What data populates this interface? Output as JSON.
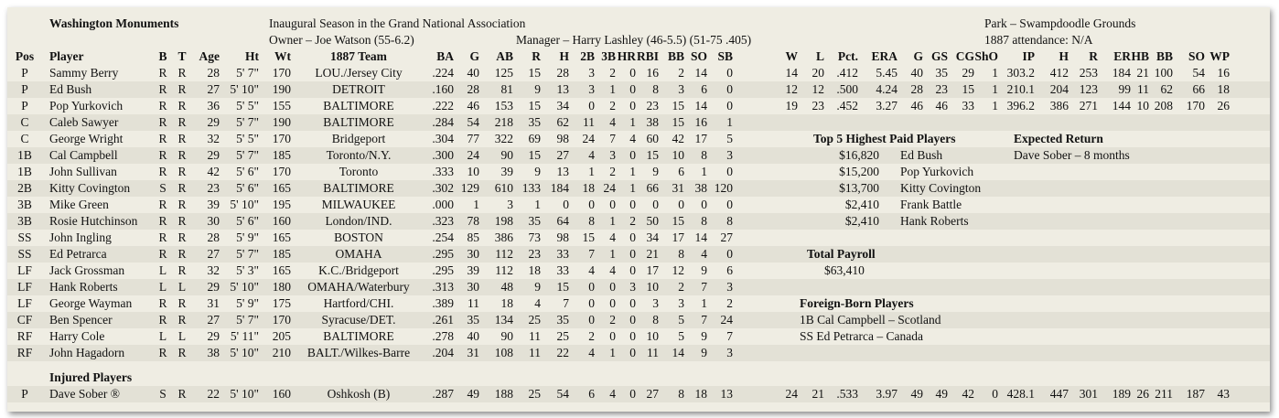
{
  "team": {
    "name": "Washington Monuments",
    "season": "Inaugural Season in the Grand National Association",
    "owner": "Owner – Joe Watson (55-6.2)",
    "manager": "Manager – Harry Lashley (46-5.5)  (51-75 .405)",
    "park": "Park – Swampdoodle Grounds",
    "attendance": "1887 attendance:  N/A"
  },
  "headers": [
    "Pos",
    "Player",
    "B",
    "T",
    "Age",
    "Ht",
    "Wt",
    "1887 Team",
    "BA",
    "G",
    "AB",
    "R",
    "H",
    "2B",
    "3B",
    "HR",
    "RBI",
    "BB",
    "SO",
    "SB",
    "W",
    "L",
    "Pct.",
    "ERA",
    "G",
    "GS",
    "CG",
    "ShO",
    "IP",
    "H",
    "R",
    "ER",
    "HB",
    "BB",
    "SO",
    "WP"
  ],
  "players": [
    {
      "pos": "P",
      "name": "Sammy Berry",
      "b": "R",
      "t": "R",
      "age": "28",
      "ht": "5' 7\"",
      "wt": "170",
      "team": "LOU./Jersey City",
      "bat": [
        ".224",
        "40",
        "125",
        "15",
        "28",
        "3",
        "2",
        "0",
        "16",
        "2",
        "14",
        "0"
      ],
      "pit": [
        "14",
        "20",
        ".412",
        "5.45",
        "40",
        "35",
        "29",
        "1",
        "303.2",
        "412",
        "253",
        "184",
        "21",
        "100",
        "54",
        "16"
      ]
    },
    {
      "pos": "P",
      "name": "Ed Bush",
      "b": "R",
      "t": "R",
      "age": "27",
      "ht": "5' 10\"",
      "wt": "190",
      "team": "DETROIT",
      "bat": [
        ".160",
        "28",
        "81",
        "9",
        "13",
        "3",
        "1",
        "0",
        "8",
        "3",
        "6",
        "0"
      ],
      "pit": [
        "12",
        "12",
        ".500",
        "4.24",
        "28",
        "23",
        "15",
        "1",
        "210.1",
        "204",
        "123",
        "99",
        "11",
        "62",
        "66",
        "18"
      ]
    },
    {
      "pos": "P",
      "name": "Pop Yurkovich",
      "b": "R",
      "t": "R",
      "age": "36",
      "ht": "5' 5\"",
      "wt": "155",
      "team": "BALTIMORE",
      "bat": [
        ".222",
        "46",
        "153",
        "15",
        "34",
        "0",
        "2",
        "0",
        "23",
        "15",
        "14",
        "0"
      ],
      "pit": [
        "19",
        "23",
        ".452",
        "3.27",
        "46",
        "46",
        "33",
        "1",
        "396.2",
        "386",
        "271",
        "144",
        "10",
        "208",
        "170",
        "26"
      ]
    },
    {
      "pos": "C",
      "name": "Caleb Sawyer",
      "b": "R",
      "t": "R",
      "age": "29",
      "ht": "5' 7\"",
      "wt": "190",
      "team": "BALTIMORE",
      "bat": [
        ".284",
        "54",
        "218",
        "35",
        "62",
        "11",
        "4",
        "1",
        "38",
        "15",
        "16",
        "1"
      ],
      "pit": []
    },
    {
      "pos": "C",
      "name": "George Wright",
      "b": "R",
      "t": "R",
      "age": "32",
      "ht": "5' 5\"",
      "wt": "170",
      "team": "Bridgeport",
      "bat": [
        ".304",
        "77",
        "322",
        "69",
        "98",
        "24",
        "7",
        "4",
        "60",
        "42",
        "17",
        "5"
      ],
      "pit": []
    },
    {
      "pos": "1B",
      "name": "Cal Campbell",
      "b": "R",
      "t": "R",
      "age": "29",
      "ht": "5' 7\"",
      "wt": "185",
      "team": "Toronto/N.Y.",
      "bat": [
        ".300",
        "24",
        "90",
        "15",
        "27",
        "4",
        "3",
        "0",
        "15",
        "10",
        "8",
        "3"
      ],
      "pit": []
    },
    {
      "pos": "1B",
      "name": "John Sullivan",
      "b": "R",
      "t": "R",
      "age": "42",
      "ht": "5' 6\"",
      "wt": "170",
      "team": "Toronto",
      "bat": [
        ".333",
        "10",
        "39",
        "9",
        "13",
        "1",
        "2",
        "1",
        "9",
        "6",
        "1",
        "0"
      ],
      "pit": []
    },
    {
      "pos": "2B",
      "name": "Kitty Covington",
      "b": "S",
      "t": "R",
      "age": "23",
      "ht": "5' 6\"",
      "wt": "165",
      "team": "BALTIMORE",
      "bat": [
        ".302",
        "129",
        "610",
        "133",
        "184",
        "18",
        "24",
        "1",
        "66",
        "31",
        "38",
        "120"
      ],
      "pit": []
    },
    {
      "pos": "3B",
      "name": "Mike Green",
      "b": "R",
      "t": "R",
      "age": "39",
      "ht": "5' 10\"",
      "wt": "195",
      "team": "MILWAUKEE",
      "bat": [
        ".000",
        "1",
        "3",
        "1",
        "0",
        "0",
        "0",
        "0",
        "0",
        "0",
        "0",
        "0"
      ],
      "pit": []
    },
    {
      "pos": "3B",
      "name": "Rosie Hutchinson",
      "b": "R",
      "t": "R",
      "age": "30",
      "ht": "5' 6\"",
      "wt": "160",
      "team": "London/IND.",
      "bat": [
        ".323",
        "78",
        "198",
        "35",
        "64",
        "8",
        "1",
        "2",
        "50",
        "15",
        "8",
        "8"
      ],
      "pit": []
    },
    {
      "pos": "SS",
      "name": "John Ingling",
      "b": "R",
      "t": "R",
      "age": "28",
      "ht": "5' 9\"",
      "wt": "165",
      "team": "BOSTON",
      "bat": [
        ".254",
        "85",
        "386",
        "73",
        "98",
        "15",
        "4",
        "0",
        "34",
        "17",
        "14",
        "27"
      ],
      "pit": []
    },
    {
      "pos": "SS",
      "name": "Ed Petrarca",
      "b": "R",
      "t": "R",
      "age": "27",
      "ht": "5' 7\"",
      "wt": "185",
      "team": "OMAHA",
      "bat": [
        ".295",
        "30",
        "112",
        "23",
        "33",
        "7",
        "1",
        "0",
        "21",
        "8",
        "4",
        "0"
      ],
      "pit": []
    },
    {
      "pos": "LF",
      "name": "Jack Grossman",
      "b": "L",
      "t": "R",
      "age": "32",
      "ht": "5' 3\"",
      "wt": "165",
      "team": "K.C./Bridgeport",
      "bat": [
        ".295",
        "39",
        "112",
        "18",
        "33",
        "4",
        "4",
        "0",
        "17",
        "12",
        "9",
        "6"
      ],
      "pit": []
    },
    {
      "pos": "LF",
      "name": "Hank Roberts",
      "b": "L",
      "t": "L",
      "age": "29",
      "ht": "5' 10\"",
      "wt": "180",
      "team": "OMAHA/Waterbury",
      "bat": [
        ".313",
        "30",
        "48",
        "9",
        "15",
        "0",
        "0",
        "3",
        "10",
        "2",
        "7",
        "3"
      ],
      "pit": []
    },
    {
      "pos": "LF",
      "name": "George Wayman",
      "b": "R",
      "t": "R",
      "age": "31",
      "ht": "5' 9\"",
      "wt": "175",
      "team": "Hartford/CHI.",
      "bat": [
        ".389",
        "11",
        "18",
        "4",
        "7",
        "0",
        "0",
        "0",
        "3",
        "3",
        "1",
        "2"
      ],
      "pit": []
    },
    {
      "pos": "CF",
      "name": "Ben Spencer",
      "b": "R",
      "t": "R",
      "age": "27",
      "ht": "5' 7\"",
      "wt": "170",
      "team": "Syracuse/DET.",
      "bat": [
        ".261",
        "35",
        "134",
        "25",
        "35",
        "0",
        "2",
        "0",
        "8",
        "5",
        "7",
        "24"
      ],
      "pit": []
    },
    {
      "pos": "RF",
      "name": "Harry Cole",
      "b": "L",
      "t": "L",
      "age": "29",
      "ht": "5' 11\"",
      "wt": "205",
      "team": "BALTIMORE",
      "bat": [
        ".278",
        "40",
        "90",
        "11",
        "25",
        "2",
        "0",
        "0",
        "10",
        "5",
        "9",
        "7"
      ],
      "pit": []
    },
    {
      "pos": "RF",
      "name": "John Hagadorn",
      "b": "R",
      "t": "R",
      "age": "38",
      "ht": "5' 10\"",
      "wt": "210",
      "team": "BALT./Wilkes-Barre",
      "bat": [
        ".204",
        "31",
        "108",
        "11",
        "22",
        "4",
        "1",
        "0",
        "11",
        "14",
        "9",
        "3"
      ],
      "pit": []
    }
  ],
  "injured": {
    "title": "Injured Players",
    "players": [
      {
        "pos": "P",
        "name": "Dave Sober ®",
        "b": "S",
        "t": "R",
        "age": "22",
        "ht": "5' 10\"",
        "wt": "160",
        "team": "Oshkosh (B)",
        "bat": [
          ".287",
          "49",
          "188",
          "25",
          "54",
          "6",
          "4",
          "0",
          "27",
          "8",
          "18",
          "13"
        ],
        "pit": [
          "24",
          "21",
          ".533",
          "3.97",
          "49",
          "49",
          "42",
          "0",
          "428.1",
          "447",
          "301",
          "189",
          "26",
          "211",
          "187",
          "43"
        ]
      }
    ]
  },
  "top_paid": {
    "title": "Top 5 Highest Paid Players",
    "rows": [
      {
        "salary": "$16,820",
        "name": "Ed Bush"
      },
      {
        "salary": "$15,200",
        "name": "Pop Yurkovich"
      },
      {
        "salary": "$13,700",
        "name": "Kitty Covington"
      },
      {
        "salary": "$2,410",
        "name": "Frank Battle"
      },
      {
        "salary": "$2,410",
        "name": "Hank Roberts"
      }
    ]
  },
  "expected_return": {
    "title": "Expected Return",
    "rows": [
      "Dave Sober – 8 months"
    ]
  },
  "payroll": {
    "title": "Total Payroll",
    "value": "$63,410"
  },
  "foreign_born": {
    "title": "Foreign-Born Players",
    "rows": [
      "1B Cal Campbell – Scotland",
      "SS Ed Petrarca – Canada"
    ]
  }
}
